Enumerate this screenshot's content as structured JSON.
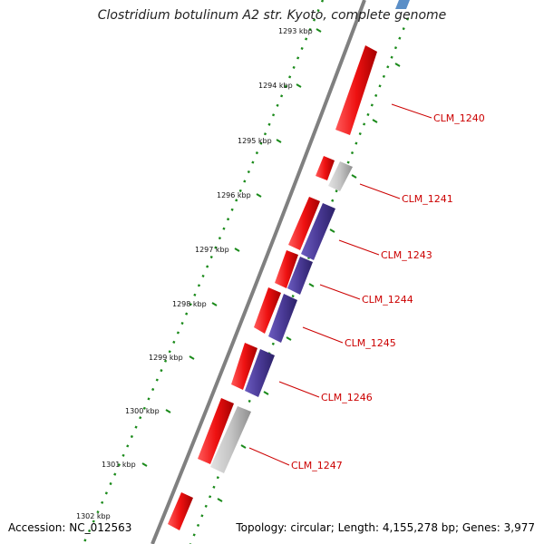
{
  "title": "Clostridium botulinum A2 str. Kyoto, complete genome",
  "accession": "Accession: NC_012563",
  "summary": "Topology: circular; Length: 4,155,278 bp; Genes: 3,977",
  "colors": {
    "backbone": "#7a7a7a",
    "ruler": "#1a8a1a",
    "forward_gene": "#ee1111",
    "reverse_gene": "#4a3a96",
    "other_gene": "#bdbdbd",
    "label": "#cc0000"
  },
  "ruler_labels": [
    "1293 kbp",
    "1294 kbp",
    "1295 kbp",
    "1296 kbp",
    "1297 kbp",
    "1298 kbp",
    "1299 kbp",
    "1300 kbp",
    "1301 kbp",
    "1302 kbp"
  ],
  "genes": [
    {
      "name": "CLM_1240",
      "type": "forward"
    },
    {
      "name": "CLM_1241",
      "type": "other"
    },
    {
      "name": "CLM_1243",
      "type": "reverse"
    },
    {
      "name": "CLM_1244",
      "type": "reverse"
    },
    {
      "name": "CLM_1245",
      "type": "reverse"
    },
    {
      "name": "CLM_1246",
      "type": "reverse"
    },
    {
      "name": "CLM_1247",
      "type": "other"
    }
  ]
}
